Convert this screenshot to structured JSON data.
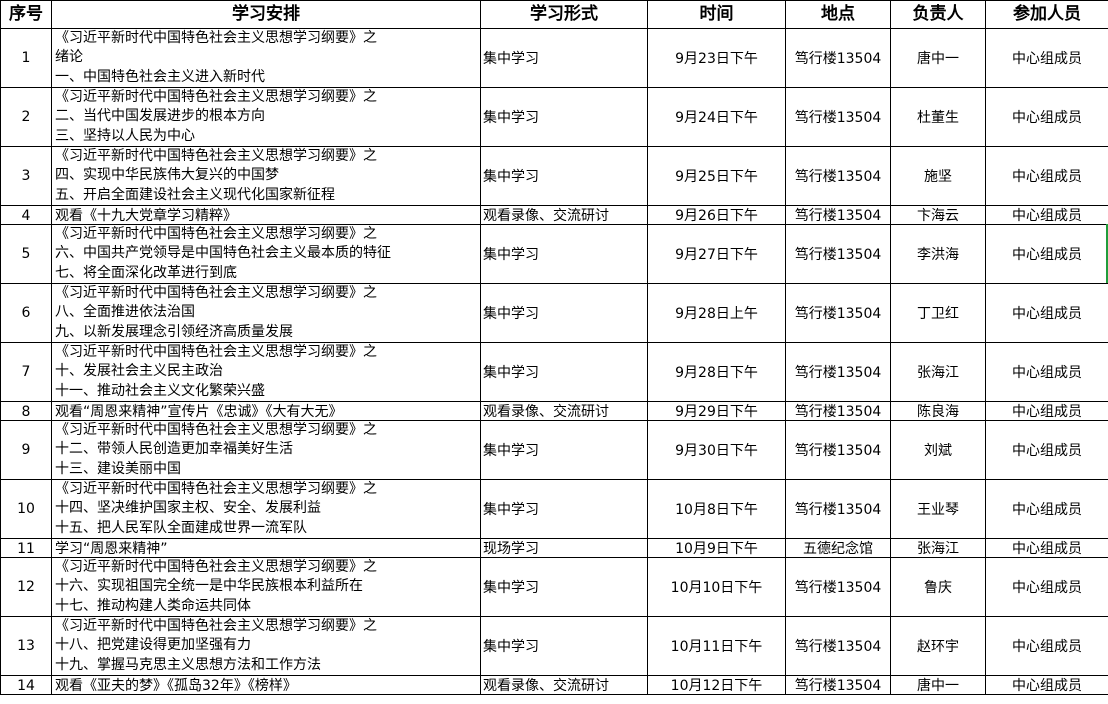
{
  "headers": [
    "序号",
    "学习安排",
    "学习形式",
    "时间",
    "地点",
    "负责人",
    "参加人员"
  ],
  "rows": [
    {
      "no": "1",
      "lines": [
        "《习近平新时代中国特色社会主义思想学习纲要》之",
        "绪论",
        "一、中国特色社会主义进入新时代"
      ],
      "form": "集中学习",
      "time": "9月23日下午",
      "place": "笃行楼13504",
      "lead": "唐中一",
      "attendees": "中心组成员"
    },
    {
      "no": "2",
      "lines": [
        "《习近平新时代中国特色社会主义思想学习纲要》之",
        "二、当代中国发展进步的根本方向",
        "三、坚持以人民为中心"
      ],
      "form": "集中学习",
      "time": "9月24日下午",
      "place": "笃行楼13504",
      "lead": "杜董生",
      "attendees": "中心组成员"
    },
    {
      "no": "3",
      "lines": [
        "《习近平新时代中国特色社会主义思想学习纲要》之",
        "四、实现中华民族伟大复兴的中国梦",
        "五、开启全面建设社会主义现代化国家新征程"
      ],
      "form": "集中学习",
      "time": "9月25日下午",
      "place": "笃行楼13504",
      "lead": "施坚",
      "attendees": "中心组成员"
    },
    {
      "no": "4",
      "lines": [
        "观看《十九大党章学习精粹》"
      ],
      "form": "观看录像、交流研讨",
      "time": "9月26日下午",
      "place": "笃行楼13504",
      "lead": "卞海云",
      "attendees": "中心组成员"
    },
    {
      "no": "5",
      "lines": [
        "《习近平新时代中国特色社会主义思想学习纲要》之",
        "六、中国共产党领导是中国特色社会主义最本质的特征",
        "七、将全面深化改革进行到底"
      ],
      "form": "集中学习",
      "time": "9月27日下午",
      "place": "笃行楼13504",
      "lead": "李洪海",
      "attendees": "中心组成员"
    },
    {
      "no": "6",
      "lines": [
        "《习近平新时代中国特色社会主义思想学习纲要》之",
        "八、全面推进依法治国",
        "九、以新发展理念引领经济高质量发展"
      ],
      "form": "集中学习",
      "time": "9月28日上午",
      "place": "笃行楼13504",
      "lead": "丁卫红",
      "attendees": "中心组成员"
    },
    {
      "no": "7",
      "lines": [
        "《习近平新时代中国特色社会主义思想学习纲要》之",
        "十、发展社会主义民主政治",
        "十一、推动社会主义文化繁荣兴盛"
      ],
      "form": "集中学习",
      "time": "9月28日下午",
      "place": "笃行楼13504",
      "lead": "张海江",
      "attendees": "中心组成员"
    },
    {
      "no": "8",
      "lines": [
        "观看“周恩来精神”宣传片《忠诚》《大有大无》"
      ],
      "form": "观看录像、交流研讨",
      "time": "9月29日下午",
      "place": "笃行楼13504",
      "lead": "陈良海",
      "attendees": "中心组成员"
    },
    {
      "no": "9",
      "lines": [
        "《习近平新时代中国特色社会主义思想学习纲要》之",
        "十二、带领人民创造更加幸福美好生活",
        "十三、建设美丽中国"
      ],
      "form": "集中学习",
      "time": "9月30日下午",
      "place": "笃行楼13504",
      "lead": "刘斌",
      "attendees": "中心组成员"
    },
    {
      "no": "10",
      "lines": [
        "《习近平新时代中国特色社会主义思想学习纲要》之",
        "十四、坚决维护国家主权、安全、发展利益",
        "十五、把人民军队全面建成世界一流军队"
      ],
      "form": "集中学习",
      "time": "10月8日下午",
      "place": "笃行楼13504",
      "lead": "王业琴",
      "attendees": "中心组成员"
    },
    {
      "no": "11",
      "lines": [
        "学习“周恩来精神”"
      ],
      "form": "现场学习",
      "time": "10月9日下午",
      "place": "五德纪念馆",
      "lead": "张海江",
      "attendees": "中心组成员"
    },
    {
      "no": "12",
      "lines": [
        "《习近平新时代中国特色社会主义思想学习纲要》之",
        "十六、实现祖国完全统一是中华民族根本利益所在",
        "十七、推动构建人类命运共同体"
      ],
      "form": "集中学习",
      "time": "10月10日下午",
      "place": "笃行楼13504",
      "lead": "鲁庆",
      "attendees": "中心组成员"
    },
    {
      "no": "13",
      "lines": [
        "《习近平新时代中国特色社会主义思想学习纲要》之",
        "十八、把党建设得更加坚强有力",
        "十九、掌握马克思主义思想方法和工作方法"
      ],
      "form": "集中学习",
      "time": "10月11日下午",
      "place": "笃行楼13504",
      "lead": "赵环宇",
      "attendees": "中心组成员"
    },
    {
      "no": "14",
      "lines": [
        "观看《亚夫的梦》《孤岛32年》《榜样》"
      ],
      "form": "观看录像、交流研讨",
      "time": "10月12日下午",
      "place": "笃行楼13504",
      "lead": "唐中一",
      "attendees": "中心组成员"
    }
  ]
}
